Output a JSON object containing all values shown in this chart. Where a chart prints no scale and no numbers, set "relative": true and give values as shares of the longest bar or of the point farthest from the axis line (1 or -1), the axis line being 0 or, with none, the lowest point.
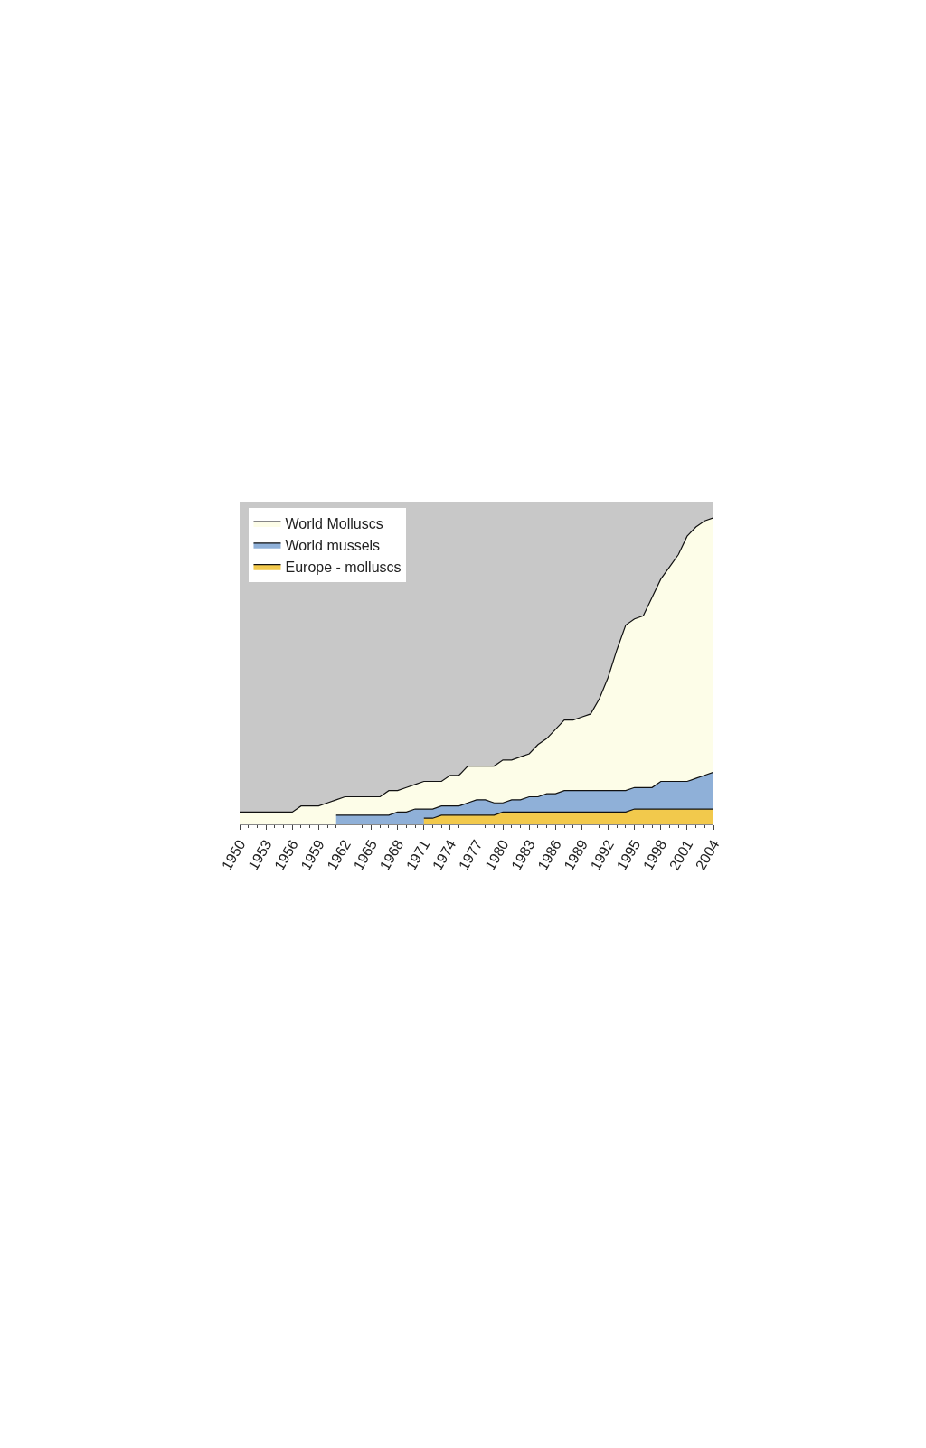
{
  "chart_data": {
    "type": "area",
    "relative": true,
    "x": [
      1950,
      1951,
      1952,
      1953,
      1954,
      1955,
      1956,
      1957,
      1958,
      1959,
      1960,
      1961,
      1962,
      1963,
      1964,
      1965,
      1966,
      1967,
      1968,
      1969,
      1970,
      1971,
      1972,
      1973,
      1974,
      1975,
      1976,
      1977,
      1978,
      1979,
      1980,
      1981,
      1982,
      1983,
      1984,
      1985,
      1986,
      1987,
      1988,
      1989,
      1990,
      1991,
      1992,
      1993,
      1994,
      1995,
      1996,
      1997,
      1998,
      1999,
      2000,
      2001,
      2002,
      2003,
      2004
    ],
    "xlim": [
      1950,
      2004
    ],
    "xticks": [
      1950,
      1953,
      1956,
      1959,
      1962,
      1965,
      1968,
      1971,
      1974,
      1977,
      1980,
      1983,
      1986,
      1989,
      1992,
      1995,
      1998,
      2001,
      2004
    ],
    "series": [
      {
        "name": "World Molluscs",
        "color": "#fdfde8",
        "values": [
          0.04,
          0.04,
          0.04,
          0.04,
          0.04,
          0.04,
          0.04,
          0.06,
          0.06,
          0.06,
          0.07,
          0.08,
          0.09,
          0.09,
          0.09,
          0.09,
          0.09,
          0.11,
          0.11,
          0.12,
          0.13,
          0.14,
          0.14,
          0.14,
          0.16,
          0.16,
          0.19,
          0.19,
          0.19,
          0.19,
          0.21,
          0.21,
          0.22,
          0.23,
          0.26,
          0.28,
          0.31,
          0.34,
          0.34,
          0.35,
          0.36,
          0.41,
          0.48,
          0.57,
          0.65,
          0.67,
          0.68,
          0.74,
          0.8,
          0.84,
          0.88,
          0.94,
          0.97,
          0.99,
          1.0
        ]
      },
      {
        "name": "World mussels",
        "color": "#8fb0d8",
        "values": [
          null,
          null,
          null,
          null,
          null,
          null,
          null,
          null,
          null,
          null,
          null,
          0.03,
          0.03,
          0.03,
          0.03,
          0.03,
          0.03,
          0.03,
          0.04,
          0.04,
          0.05,
          0.05,
          0.05,
          0.06,
          0.06,
          0.06,
          0.07,
          0.08,
          0.08,
          0.07,
          0.07,
          0.08,
          0.08,
          0.09,
          0.09,
          0.1,
          0.1,
          0.11,
          0.11,
          0.11,
          0.11,
          0.11,
          0.11,
          0.11,
          0.11,
          0.12,
          0.12,
          0.12,
          0.14,
          0.14,
          0.14,
          0.14,
          0.15,
          0.16,
          0.17
        ]
      },
      {
        "name": "Europe - molluscs",
        "color": "#f2c94c",
        "values": [
          null,
          null,
          null,
          null,
          null,
          null,
          null,
          null,
          null,
          null,
          null,
          null,
          null,
          null,
          null,
          null,
          null,
          null,
          null,
          null,
          null,
          0.02,
          0.02,
          0.03,
          0.03,
          0.03,
          0.03,
          0.03,
          0.03,
          0.03,
          0.04,
          0.04,
          0.04,
          0.04,
          0.04,
          0.04,
          0.04,
          0.04,
          0.04,
          0.04,
          0.04,
          0.04,
          0.04,
          0.04,
          0.04,
          0.05,
          0.05,
          0.05,
          0.05,
          0.05,
          0.05,
          0.05,
          0.05,
          0.05,
          0.05
        ]
      }
    ],
    "legend": "top left",
    "grid": false
  }
}
